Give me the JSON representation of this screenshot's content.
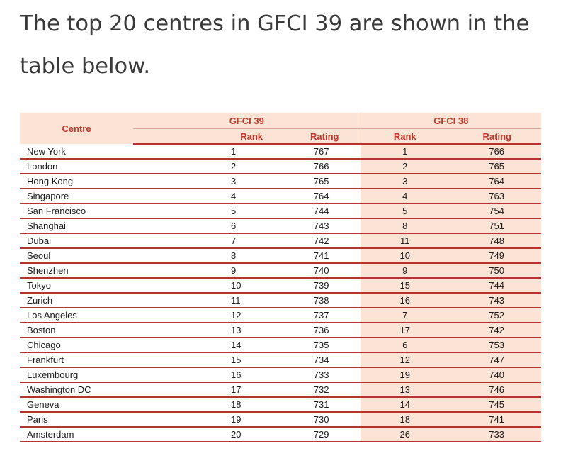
{
  "intro": {
    "text": "The top 20 centres in GFCI 39 are shown in the table below."
  },
  "table": {
    "header": {
      "centre": "Centre",
      "group_current": "GFCI 39",
      "group_previous": "GFCI 38",
      "rank": "Rank",
      "rating": "Rating"
    },
    "rows": [
      {
        "centre": "New York",
        "rank39": "1",
        "rating39": "767",
        "rank38": "1",
        "rating38": "766"
      },
      {
        "centre": "London",
        "rank39": "2",
        "rating39": "766",
        "rank38": "2",
        "rating38": "765"
      },
      {
        "centre": "Hong Kong",
        "rank39": "3",
        "rating39": "765",
        "rank38": "3",
        "rating38": "764"
      },
      {
        "centre": "Singapore",
        "rank39": "4",
        "rating39": "764",
        "rank38": "4",
        "rating38": "763"
      },
      {
        "centre": "San Francisco",
        "rank39": "5",
        "rating39": "744",
        "rank38": "5",
        "rating38": "754"
      },
      {
        "centre": "Shanghai",
        "rank39": "6",
        "rating39": "743",
        "rank38": "8",
        "rating38": "751"
      },
      {
        "centre": "Dubai",
        "rank39": "7",
        "rating39": "742",
        "rank38": "11",
        "rating38": "748"
      },
      {
        "centre": "Seoul",
        "rank39": "8",
        "rating39": "741",
        "rank38": "10",
        "rating38": "749"
      },
      {
        "centre": "Shenzhen",
        "rank39": "9",
        "rating39": "740",
        "rank38": "9",
        "rating38": "750"
      },
      {
        "centre": "Tokyo",
        "rank39": "10",
        "rating39": "739",
        "rank38": "15",
        "rating38": "744"
      },
      {
        "centre": "Zurich",
        "rank39": "11",
        "rating39": "738",
        "rank38": "16",
        "rating38": "743"
      },
      {
        "centre": "Los Angeles",
        "rank39": "12",
        "rating39": "737",
        "rank38": "7",
        "rating38": "752"
      },
      {
        "centre": "Boston",
        "rank39": "13",
        "rating39": "736",
        "rank38": "17",
        "rating38": "742"
      },
      {
        "centre": "Chicago",
        "rank39": "14",
        "rating39": "735",
        "rank38": "6",
        "rating38": "753"
      },
      {
        "centre": "Frankfurt",
        "rank39": "15",
        "rating39": "734",
        "rank38": "12",
        "rating38": "747"
      },
      {
        "centre": "Luxembourg",
        "rank39": "16",
        "rating39": "733",
        "rank38": "19",
        "rating38": "740"
      },
      {
        "centre": "Washington DC",
        "rank39": "17",
        "rating39": "732",
        "rank38": "13",
        "rating38": "746"
      },
      {
        "centre": "Geneva",
        "rank39": "18",
        "rating39": "731",
        "rank38": "14",
        "rating38": "745"
      },
      {
        "centre": "Paris",
        "rank39": "19",
        "rating39": "730",
        "rank38": "18",
        "rating38": "741"
      },
      {
        "centre": "Amsterdam",
        "rank39": "20",
        "rating39": "729",
        "rank38": "26",
        "rating38": "733"
      }
    ]
  },
  "colors": {
    "header_bg": "#fbe4d6",
    "header_text": "#c0392b",
    "rule": "#b5322e"
  }
}
